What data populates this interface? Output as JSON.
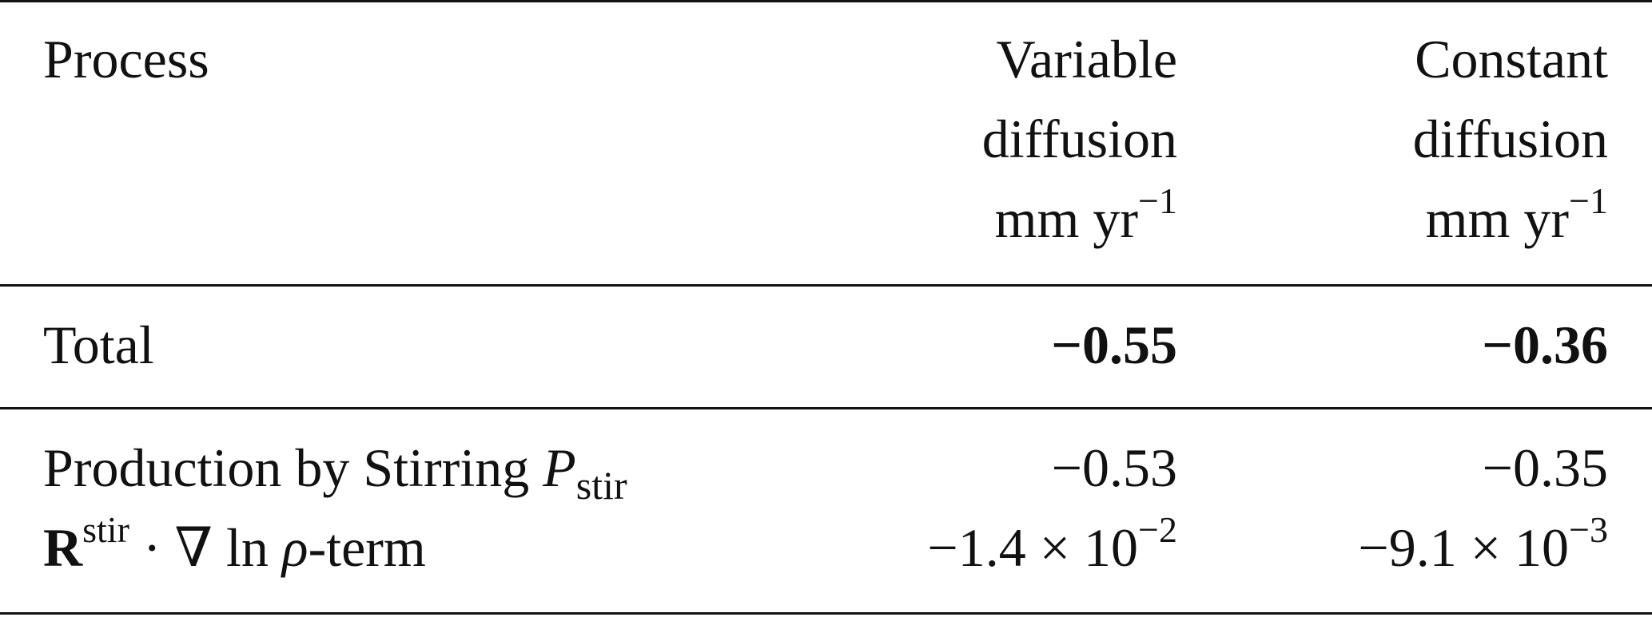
{
  "table": {
    "headers": {
      "process": "Process",
      "variable": [
        "Variable",
        "diffusion"
      ],
      "constant": [
        "Constant",
        "diffusion"
      ],
      "unit_base": "mm yr",
      "unit_exp": "−1"
    },
    "total": {
      "label": "Total",
      "variable": "−0.55",
      "constant": "−0.36"
    },
    "rows": [
      {
        "label_text": "Production by Stirring ",
        "label_symbol": "P",
        "label_sub": "stir",
        "variable": "−0.53",
        "constant": "−0.35"
      },
      {
        "label_symbol": "R",
        "label_sup": "stir",
        "label_rest": " · ∇ ln ",
        "label_rho": "ρ",
        "label_tail": "-term",
        "variable_mant": "−1.4 × 10",
        "variable_exp": "−2",
        "constant_mant": "−9.1 × 10",
        "constant_exp": "−3"
      }
    ]
  }
}
